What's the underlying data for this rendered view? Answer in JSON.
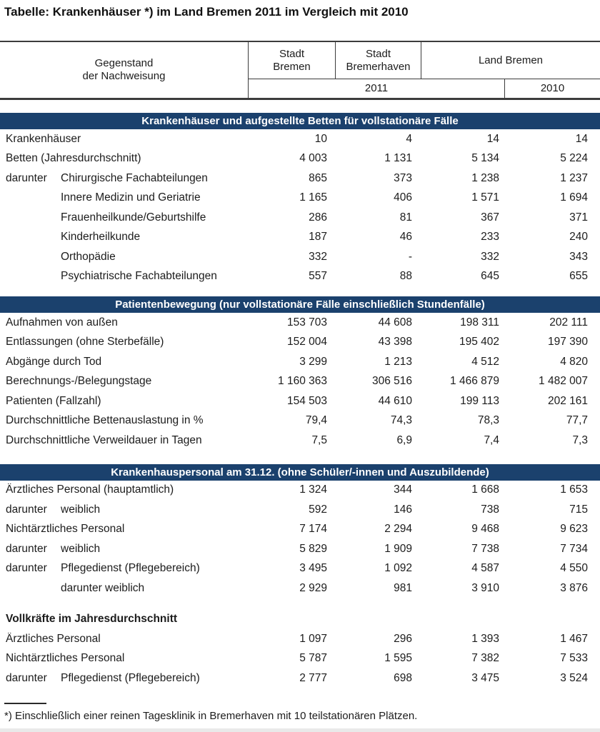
{
  "page": {
    "title": "Tabelle: Krankenhäuser *) im Land Bremen 2011 im Vergleich mit 2010",
    "footnote": "*) Einschließlich einer reinen Tagesklinik in Bremerhaven mit 10 teilstationären Plätzen."
  },
  "colors": {
    "band_bg": "#1b416d",
    "band_text": "#ffffff",
    "rule": "#3c3c3c",
    "text": "#1c1c1c"
  },
  "header": {
    "stub": [
      "Gegenstand",
      "der Nachweisung"
    ],
    "col_stadt_bremen": [
      "Stadt",
      "Bremen"
    ],
    "col_stadt_bremerhaven": [
      "Stadt",
      "Bremerhaven"
    ],
    "col_land_bremen": "Land Bremen",
    "year_left": "2011",
    "year_right": "2010"
  },
  "sections": [
    {
      "heading": "Krankenhäuser und aufgestellte Betten für vollstationäre Fälle",
      "rows": [
        {
          "label": "Krankenhäuser",
          "values": [
            "10",
            "4",
            "14",
            "14"
          ]
        },
        {
          "label": "Betten (Jahresdurchschnitt)",
          "values": [
            "4 003",
            "1 131",
            "5 134",
            "5 224"
          ]
        },
        {
          "prefix": "darunter",
          "label": "Chirurgische Fachabteilungen",
          "values": [
            "865",
            "373",
            "1 238",
            "1 237"
          ]
        },
        {
          "label": "Innere Medizin und Geriatrie",
          "indent": 1,
          "values": [
            "1 165",
            "406",
            "1 571",
            "1 694"
          ]
        },
        {
          "label": "Frauenheilkunde/Geburtshilfe",
          "indent": 1,
          "values": [
            "286",
            "81",
            "367",
            "371"
          ]
        },
        {
          "label": "Kinderheilkunde",
          "indent": 1,
          "values": [
            "187",
            "46",
            "233",
            "240"
          ]
        },
        {
          "label": "Orthopädie",
          "indent": 1,
          "values": [
            "332",
            "-",
            "332",
            "343"
          ]
        },
        {
          "label": "Psychiatrische Fachabteilungen",
          "indent": 1,
          "values": [
            "557",
            "88",
            "645",
            "655"
          ]
        }
      ]
    },
    {
      "heading": "Patientenbewegung (nur vollstationäre Fälle einschließlich Stundenfälle)",
      "rows": [
        {
          "label": "Aufnahmen von außen",
          "values": [
            "153 703",
            "44 608",
            "198 311",
            "202 111"
          ]
        },
        {
          "label": "Entlassungen (ohne Sterbefälle)",
          "values": [
            "152 004",
            "43 398",
            "195 402",
            "197 390"
          ]
        },
        {
          "label": "Abgänge durch Tod",
          "values": [
            "3 299",
            "1 213",
            "4 512",
            "4 820"
          ]
        },
        {
          "label": "Berechnungs-/Belegungstage",
          "values": [
            "1 160 363",
            "306 516",
            "1 466 879",
            "1 482 007"
          ]
        },
        {
          "label": "Patienten (Fallzahl)",
          "values": [
            "154 503",
            "44 610",
            "199 113",
            "202 161"
          ]
        },
        {
          "label": "Durchschnittliche Bettenauslastung in %",
          "values": [
            "79,4",
            "74,3",
            "78,3",
            "77,7"
          ]
        },
        {
          "label": "Durchschnittliche Verweildauer in Tagen",
          "values": [
            "7,5",
            "6,9",
            "7,4",
            "7,3"
          ]
        }
      ]
    },
    {
      "heading": "Krankenhauspersonal am 31.12. (ohne Schüler/-innen und Auszubildende)",
      "rows": [
        {
          "label": "Ärztliches Personal (hauptamtlich)",
          "values": [
            "1 324",
            "344",
            "1 668",
            "1 653"
          ]
        },
        {
          "prefix": "darunter",
          "label": "weiblich",
          "values": [
            "592",
            "146",
            "738",
            "715"
          ]
        },
        {
          "label": "Nichtärztliches Personal",
          "values": [
            "7 174",
            "2 294",
            "9 468",
            "9 623"
          ]
        },
        {
          "prefix": "darunter",
          "label": "weiblich",
          "values": [
            "5 829",
            "1 909",
            "7 738",
            "7 734"
          ]
        },
        {
          "prefix": "darunter",
          "label": "Pflegedienst (Pflegebereich)",
          "values": [
            "3 495",
            "1 092",
            "4 587",
            "4 550"
          ]
        },
        {
          "label": "darunter weiblich",
          "indent": 1,
          "values": [
            "2 929",
            "981",
            "3 910",
            "3 876"
          ]
        }
      ]
    },
    {
      "subheading": "Vollkräfte im Jahresdurchschnitt",
      "rows": [
        {
          "label": "Ärztliches Personal",
          "values": [
            "1 097",
            "296",
            "1 393",
            "1 467"
          ]
        },
        {
          "label": "Nichtärztliches Personal",
          "values": [
            "5 787",
            "1 595",
            "7 382",
            "7 533"
          ]
        },
        {
          "prefix": "darunter",
          "label": "Pflegedienst (Pflegebereich)",
          "values": [
            "2 777",
            "698",
            "3 475",
            "3 524"
          ]
        }
      ]
    }
  ]
}
